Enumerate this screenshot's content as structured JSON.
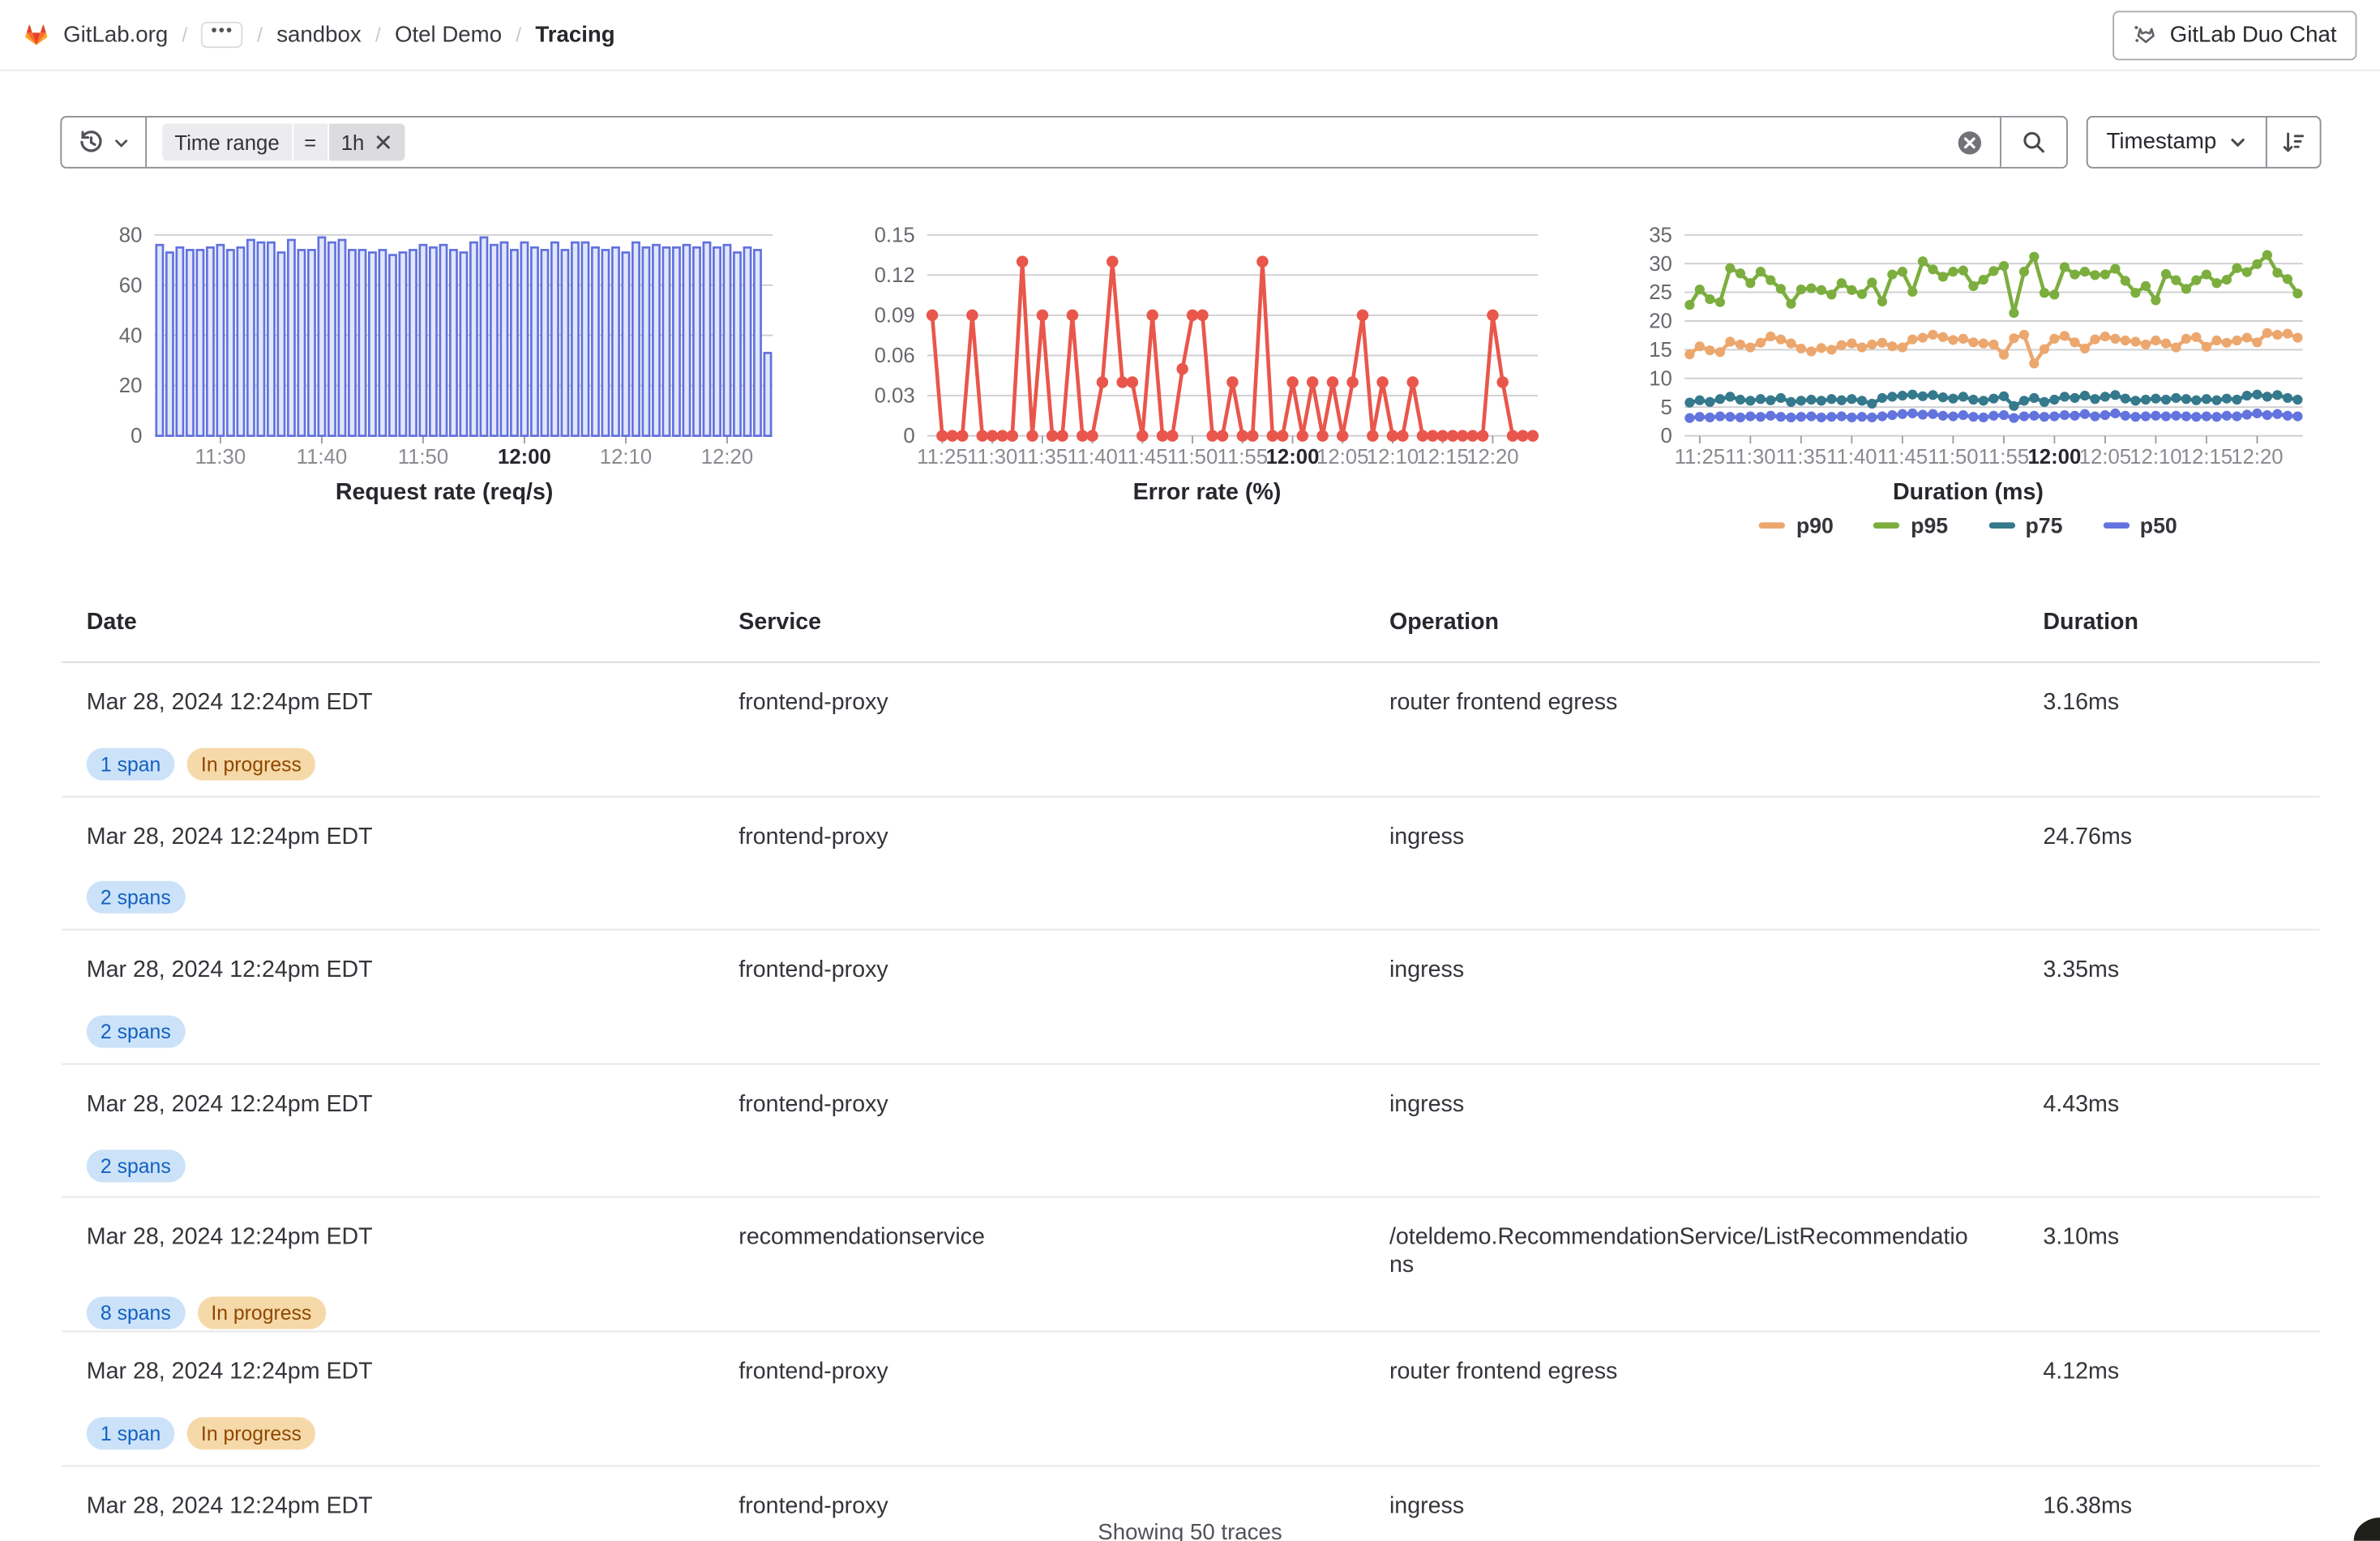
{
  "header": {
    "breadcrumbs": [
      "GitLab.org",
      "sandbox",
      "Otel Demo",
      "Tracing"
    ],
    "ellipsis": "•••",
    "duo_chat_label": "GitLab Duo Chat"
  },
  "filter_bar": {
    "token": {
      "field": "Time range",
      "operator": "=",
      "value": "1h"
    },
    "sort_field_label": "Timestamp"
  },
  "colors": {
    "bar_stroke": "#6172dd",
    "bar_fill": "#e2e6fb",
    "error_line": "#e9564b",
    "p90": "#eca76e",
    "p95": "#7cae3f",
    "p75": "#35798c",
    "p50": "#6374de",
    "grid": "#cfcfd2",
    "badge_info_bg": "#cbe2f9",
    "badge_info_text": "#1360c0",
    "badge_warning_bg": "#f5d9a8",
    "badge_warning_text": "#8f4700"
  },
  "chart_data": [
    {
      "type": "bar",
      "title": "Request rate (req/s)",
      "x_start": "11:24",
      "x_interval_minutes": 1,
      "xticks": [
        "11:30",
        "11:40",
        "11:50",
        "12:00",
        "12:10",
        "12:20"
      ],
      "bold_xtick": "12:00",
      "ylim": [
        0,
        80
      ],
      "yticks": [
        0,
        20,
        40,
        60,
        80
      ],
      "grid": true,
      "color": "#6172dd",
      "fill": "#e2e6fb",
      "values": [
        76,
        73,
        75,
        74,
        74,
        75,
        76,
        74,
        75,
        78,
        77,
        77,
        73,
        78,
        74,
        74,
        79,
        77,
        78,
        74,
        74,
        73,
        74,
        72,
        73,
        74,
        76,
        75,
        76,
        74,
        73,
        77,
        79,
        76,
        77,
        74,
        77,
        75,
        74,
        77,
        74,
        77,
        77,
        75,
        74,
        75,
        73,
        77,
        75,
        76,
        75,
        75,
        76,
        75,
        77,
        75,
        76,
        73,
        75,
        74,
        33
      ]
    },
    {
      "type": "line",
      "title": "Error rate (%)",
      "x_start": "11:24",
      "x_interval_minutes": 1,
      "xticks": [
        "11:25",
        "11:30",
        "11:35",
        "11:40",
        "11:45",
        "11:50",
        "11:55",
        "12:00",
        "12:05",
        "12:10",
        "12:15",
        "12:20"
      ],
      "bold_xtick": "12:00",
      "ylim": [
        0,
        0.15
      ],
      "yticks": [
        0,
        0.03,
        0.06,
        0.09,
        0.12,
        0.15
      ],
      "grid": true,
      "color": "#e9564b",
      "values": [
        0.09,
        0,
        0,
        0,
        0.09,
        0,
        0,
        0,
        0,
        0.13,
        0,
        0.09,
        0,
        0,
        0.09,
        0,
        0,
        0.04,
        0.13,
        0.04,
        0.04,
        0,
        0.09,
        0,
        0,
        0.05,
        0.09,
        0.09,
        0,
        0,
        0.04,
        0,
        0,
        0.13,
        0,
        0,
        0.04,
        0,
        0.04,
        0,
        0.04,
        0,
        0.04,
        0.09,
        0,
        0.04,
        0,
        0,
        0.04,
        0,
        0,
        0,
        0,
        0,
        0,
        0,
        0.09,
        0.04,
        0,
        0,
        0
      ]
    },
    {
      "type": "line",
      "title": "Duration (ms)",
      "x_start": "11:24",
      "x_interval_minutes": 1,
      "xticks": [
        "11:25",
        "11:30",
        "11:35",
        "11:40",
        "11:45",
        "11:50",
        "11:55",
        "12:00",
        "12:05",
        "12:10",
        "12:15",
        "12:20"
      ],
      "bold_xtick": "12:00",
      "ylim": [
        0,
        35
      ],
      "yticks": [
        0,
        5,
        10,
        15,
        20,
        25,
        30,
        35
      ],
      "grid": true,
      "legend_position": "bottom",
      "series": [
        {
          "name": "p90",
          "color": "#eca76e",
          "values": [
            14.2,
            15.6,
            14.9,
            14.6,
            16.4,
            15.9,
            15.4,
            16.2,
            17.3,
            16.8,
            16.1,
            15.2,
            14.7,
            15.3,
            15.0,
            15.8,
            16.1,
            15.4,
            15.9,
            16.2,
            15.6,
            15.4,
            16.8,
            17.1,
            17.6,
            17.2,
            16.7,
            16.9,
            16.3,
            16.1,
            15.9,
            14.1,
            17.0,
            17.6,
            12.6,
            15.1,
            16.9,
            17.4,
            16.3,
            15.2,
            16.8,
            17.3,
            16.9,
            16.6,
            16.4,
            15.9,
            16.6,
            16.1,
            15.4,
            16.9,
            17.2,
            15.5,
            16.6,
            16.2,
            16.6,
            17.1,
            16.3,
            17.9,
            17.6,
            17.8,
            17.1
          ]
        },
        {
          "name": "p95",
          "color": "#7cae3f",
          "values": [
            22.8,
            25.5,
            23.8,
            23.3,
            29.2,
            28.3,
            26.6,
            28.6,
            27.1,
            25.6,
            23.0,
            25.5,
            25.7,
            25.4,
            24.6,
            26.6,
            25.4,
            24.7,
            26.7,
            23.4,
            28.1,
            28.6,
            25.1,
            30.4,
            29.0,
            27.7,
            28.6,
            28.8,
            26.1,
            27.2,
            28.7,
            29.6,
            21.4,
            28.6,
            31.2,
            24.9,
            24.6,
            29.4,
            28.1,
            28.6,
            28.0,
            28.1,
            29.1,
            27.0,
            24.9,
            26.1,
            23.6,
            28.2,
            27.1,
            25.6,
            27.1,
            28.1,
            26.6,
            27.2,
            29.2,
            28.5,
            29.9,
            31.5,
            28.4,
            27.3,
            24.8
          ]
        },
        {
          "name": "p75",
          "color": "#35798c",
          "values": [
            5.8,
            6.2,
            5.9,
            6.4,
            6.8,
            6.3,
            6.1,
            6.4,
            6.2,
            6.6,
            5.9,
            6.1,
            6.3,
            6.1,
            6.4,
            6.2,
            6.4,
            6.1,
            5.6,
            6.6,
            6.8,
            7.0,
            7.2,
            6.9,
            7.1,
            6.7,
            6.5,
            6.8,
            6.3,
            6.1,
            6.5,
            6.9,
            5.2,
            6.1,
            6.6,
            5.9,
            6.3,
            6.8,
            6.6,
            7.0,
            6.4,
            6.8,
            7.1,
            6.5,
            6.1,
            6.3,
            6.5,
            6.3,
            6.6,
            6.4,
            6.2,
            6.4,
            6.2,
            6.5,
            6.3,
            7.0,
            7.2,
            6.8,
            7.1,
            6.6,
            6.3
          ]
        },
        {
          "name": "p50",
          "color": "#6374de",
          "values": [
            3.1,
            3.3,
            3.2,
            3.4,
            3.3,
            3.2,
            3.4,
            3.3,
            3.5,
            3.3,
            3.2,
            3.3,
            3.4,
            3.2,
            3.3,
            3.4,
            3.2,
            3.3,
            3.2,
            3.4,
            3.6,
            3.8,
            3.9,
            3.7,
            3.8,
            3.5,
            3.4,
            3.6,
            3.3,
            3.2,
            3.5,
            3.6,
            3.1,
            3.4,
            3.5,
            3.3,
            3.4,
            3.6,
            3.5,
            3.8,
            3.4,
            3.6,
            3.9,
            3.5,
            3.3,
            3.4,
            3.5,
            3.4,
            3.5,
            3.4,
            3.3,
            3.4,
            3.3,
            3.5,
            3.4,
            3.7,
            3.9,
            3.6,
            3.8,
            3.5,
            3.4
          ]
        }
      ]
    }
  ],
  "table": {
    "columns": [
      "Date",
      "Service",
      "Operation",
      "Duration"
    ],
    "rows": [
      {
        "date": "Mar 28, 2024 12:24pm EDT",
        "service": "frontend-proxy",
        "operation": "router frontend egress",
        "duration": "3.16ms",
        "badges": [
          {
            "label": "1 span",
            "type": "info"
          },
          {
            "label": "In progress",
            "type": "warning"
          }
        ]
      },
      {
        "date": "Mar 28, 2024 12:24pm EDT",
        "service": "frontend-proxy",
        "operation": "ingress",
        "duration": "24.76ms",
        "badges": [
          {
            "label": "2 spans",
            "type": "info"
          }
        ]
      },
      {
        "date": "Mar 28, 2024 12:24pm EDT",
        "service": "frontend-proxy",
        "operation": "ingress",
        "duration": "3.35ms",
        "badges": [
          {
            "label": "2 spans",
            "type": "info"
          }
        ]
      },
      {
        "date": "Mar 28, 2024 12:24pm EDT",
        "service": "frontend-proxy",
        "operation": "ingress",
        "duration": "4.43ms",
        "badges": [
          {
            "label": "2 spans",
            "type": "info"
          }
        ]
      },
      {
        "date": "Mar 28, 2024 12:24pm EDT",
        "service": "recommendationservice",
        "operation": "/oteldemo.RecommendationService/ListRecommendations",
        "duration": "3.10ms",
        "badges": [
          {
            "label": "8 spans",
            "type": "info"
          },
          {
            "label": "In progress",
            "type": "warning"
          }
        ]
      },
      {
        "date": "Mar 28, 2024 12:24pm EDT",
        "service": "frontend-proxy",
        "operation": "router frontend egress",
        "duration": "4.12ms",
        "badges": [
          {
            "label": "1 span",
            "type": "info"
          },
          {
            "label": "In progress",
            "type": "warning"
          }
        ]
      },
      {
        "date": "Mar 28, 2024 12:24pm EDT",
        "service": "frontend-proxy",
        "operation": "ingress",
        "duration": "16.38ms",
        "badges": []
      }
    ]
  },
  "footer": {
    "text": "Showing 50 traces"
  }
}
